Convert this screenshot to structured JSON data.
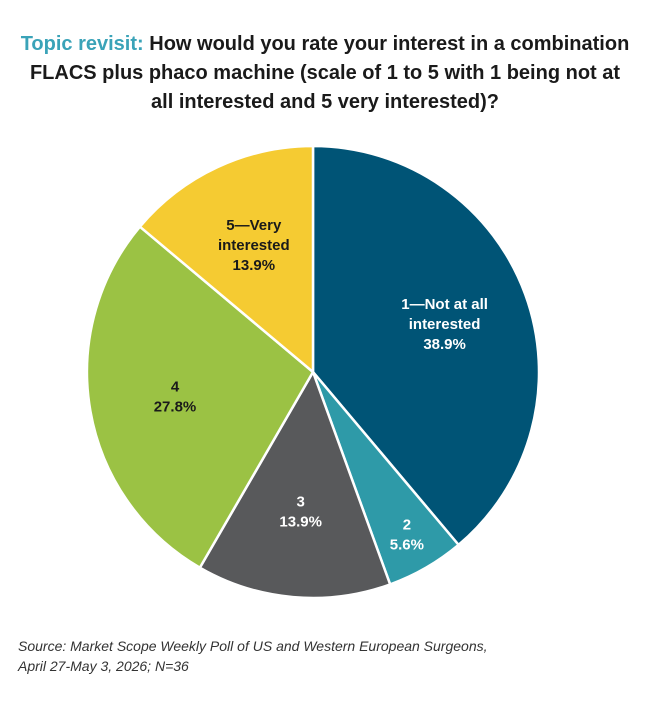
{
  "title": {
    "prefix": "Topic revisit:",
    "question": "How would you rate your interest in a combination FLACS plus phaco machine (scale of 1 to 5 with 1 being not at all interested and 5 very interested)?"
  },
  "chart_data": {
    "type": "pie",
    "slices": [
      {
        "label": [
          "1—Not at all",
          "interested"
        ],
        "percent_label": "38.9%",
        "value": 38.9,
        "color": "#005476",
        "label_color": "#ffffff"
      },
      {
        "label": [
          "2"
        ],
        "percent_label": "5.6%",
        "value": 5.6,
        "color": "#2e9aa8",
        "label_color": "#ffffff"
      },
      {
        "label": [
          "3"
        ],
        "percent_label": "13.9%",
        "value": 13.9,
        "color": "#58595b",
        "label_color": "#ffffff"
      },
      {
        "label": [
          "4"
        ],
        "percent_label": "27.8%",
        "value": 27.8,
        "color": "#9bc244",
        "label_color": "#1a1a1a"
      },
      {
        "label": [
          "5—Very",
          "interested"
        ],
        "percent_label": "13.9%",
        "value": 13.9,
        "color": "#f5cb32",
        "label_color": "#1a1a1a"
      }
    ]
  },
  "source": {
    "line1": "Source: Market Scope Weekly Poll of US and Western European Surgeons,",
    "line2": "April 27-May 3, 2026; N=36"
  }
}
